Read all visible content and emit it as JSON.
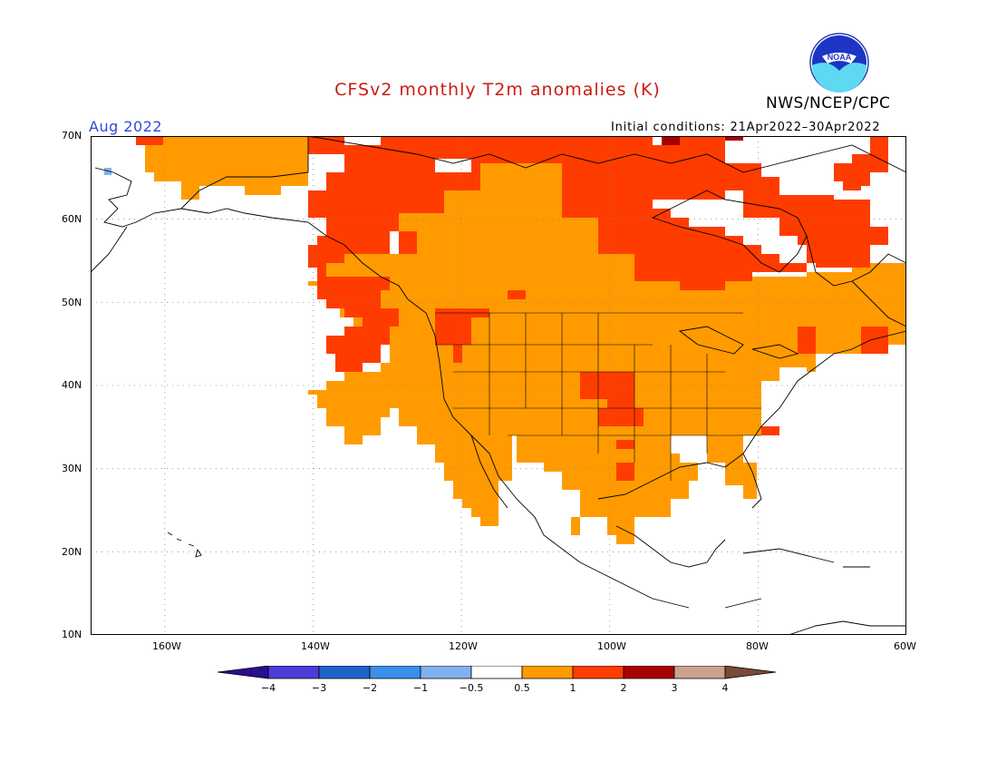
{
  "header": {
    "title": "CFSv2 monthly T2m anomalies (K)",
    "agency": "NWS/NCEP/CPC",
    "logo_text": "NOAA",
    "month": "Aug 2022",
    "initial_conditions": "Initial conditions: 21Apr2022–30Apr2022"
  },
  "map": {
    "lat_ticks": [
      "70N",
      "60N",
      "50N",
      "40N",
      "30N",
      "20N",
      "10N"
    ],
    "lon_ticks": [
      "160W",
      "140W",
      "120W",
      "100W",
      "80W",
      "60W"
    ],
    "lat_range": [
      10,
      70
    ],
    "lon_range": [
      -170,
      -60
    ],
    "grid": true,
    "colors": {
      "anom_0_5_to_1": "#ff9b00",
      "anom_1_to_2": "#ff3c00",
      "anom_2_to_3": "#a80000",
      "anom_neg_1_to_neg_0_5": "#7fb2ef",
      "coast": "#000000"
    }
  },
  "colorbar": {
    "labels": [
      "−4",
      "−3",
      "−2",
      "−1",
      "−0.5",
      "0.5",
      "1",
      "2",
      "3",
      "4"
    ],
    "colors": [
      "#2b0d8e",
      "#4d3cd6",
      "#1f63c9",
      "#3b8fe8",
      "#7fb2ef",
      "#ffffff",
      "#ff9b00",
      "#ff3c00",
      "#a80000",
      "#c9a290",
      "#7a4a38"
    ]
  }
}
